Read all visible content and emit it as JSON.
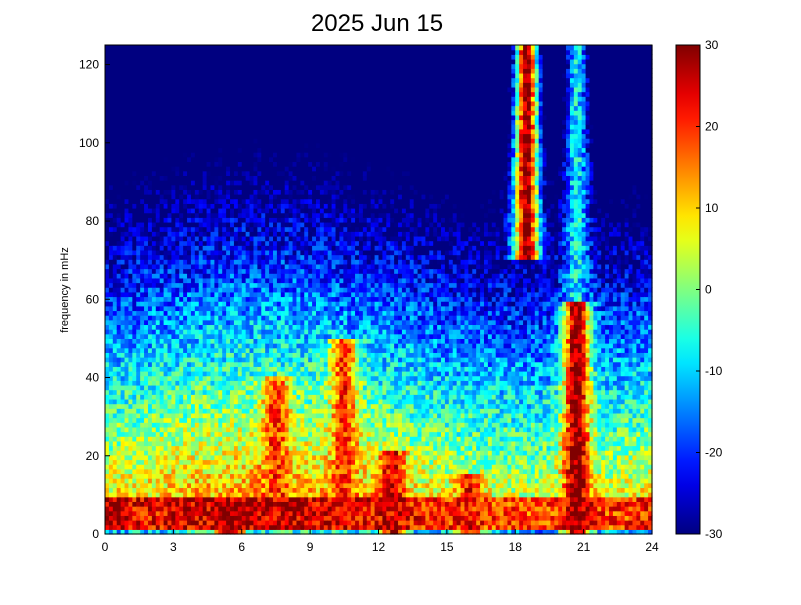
{
  "chart_data": {
    "type": "heatmap",
    "title": "2025 Jun 15",
    "xlabel": "",
    "ylabel": "frequency in mHz",
    "xlim": [
      0,
      24
    ],
    "ylim": [
      0,
      125
    ],
    "x_ticks": [
      0,
      3,
      6,
      9,
      12,
      15,
      18,
      21,
      24
    ],
    "y_ticks": [
      0,
      20,
      40,
      60,
      80,
      100,
      120
    ],
    "colorbar": {
      "limits": [
        -30,
        30
      ],
      "ticks": [
        30,
        20,
        10,
        0,
        -10,
        -20,
        -30
      ],
      "colormap": "jet"
    },
    "grid": false,
    "features": [
      {
        "x": 0.5,
        "y_low": 1.5,
        "y_high": 10,
        "value": 28
      },
      {
        "x": 5.5,
        "y_low": 0,
        "y_high": 8,
        "value": 30
      },
      {
        "x": 7.5,
        "y_low": 10,
        "y_high": 40,
        "value": 20
      },
      {
        "x": 10.5,
        "y_low": 10,
        "y_high": 50,
        "value": 20
      },
      {
        "x": 12.6,
        "y_low": 0,
        "y_high": 22,
        "value": 25
      },
      {
        "x": 16.0,
        "y_low": 0,
        "y_high": 15,
        "value": 22
      },
      {
        "x": 18.5,
        "y_low": 70,
        "y_high": 125,
        "value": 30
      },
      {
        "x": 20.7,
        "y_low": 0,
        "y_high": 60,
        "value": 30
      },
      {
        "x": 20.7,
        "y_low": 60,
        "y_high": 125,
        "value": -8
      }
    ]
  }
}
